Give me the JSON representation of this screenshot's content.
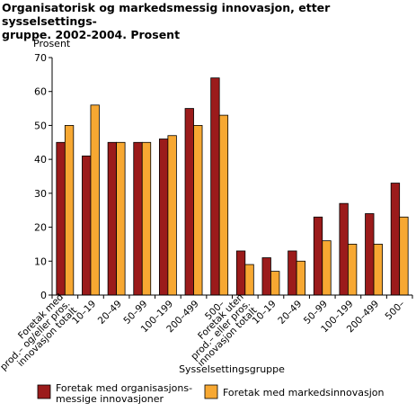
{
  "chart_data": {
    "type": "bar",
    "title": "Organisatorisk og markedsmessig innovasjon, etter sysselsettings-\ngruppe. 2002-2004. Prosent",
    "ylabel": "Prosent",
    "xlabel": "Sysselsettingsgruppe",
    "ylim": [
      0,
      70
    ],
    "yticks": [
      0,
      10,
      20,
      30,
      40,
      50,
      60,
      70
    ],
    "grid": false,
    "legend_position": "bottom",
    "categories": [
      [
        "Foretak med",
        "prod.- og/eller pros.",
        "innovasjon totalt"
      ],
      [
        "10-19"
      ],
      [
        "20-49"
      ],
      [
        "50-99"
      ],
      [
        "100-199"
      ],
      [
        "200-499"
      ],
      [
        "500-"
      ],
      [
        "Foretak uten",
        "prod.- eller pros.",
        "innovasjon totalt"
      ],
      [
        "10-19"
      ],
      [
        "20-49"
      ],
      [
        "50-99"
      ],
      [
        "100-199"
      ],
      [
        "200-499"
      ],
      [
        "500-"
      ]
    ],
    "series": [
      {
        "name": "Foretak med organisasjons-\nmessige innovasjoner",
        "color": "#9b1b1b",
        "values": [
          45,
          41,
          45,
          45,
          46,
          55,
          64,
          13,
          11,
          13,
          23,
          27,
          24,
          33
        ]
      },
      {
        "name": "Foretak med markedsinnovasjon",
        "color": "#f7a832",
        "values": [
          50,
          56,
          45,
          45,
          47,
          50,
          53,
          9,
          7,
          10,
          16,
          15,
          15,
          23
        ]
      }
    ]
  }
}
